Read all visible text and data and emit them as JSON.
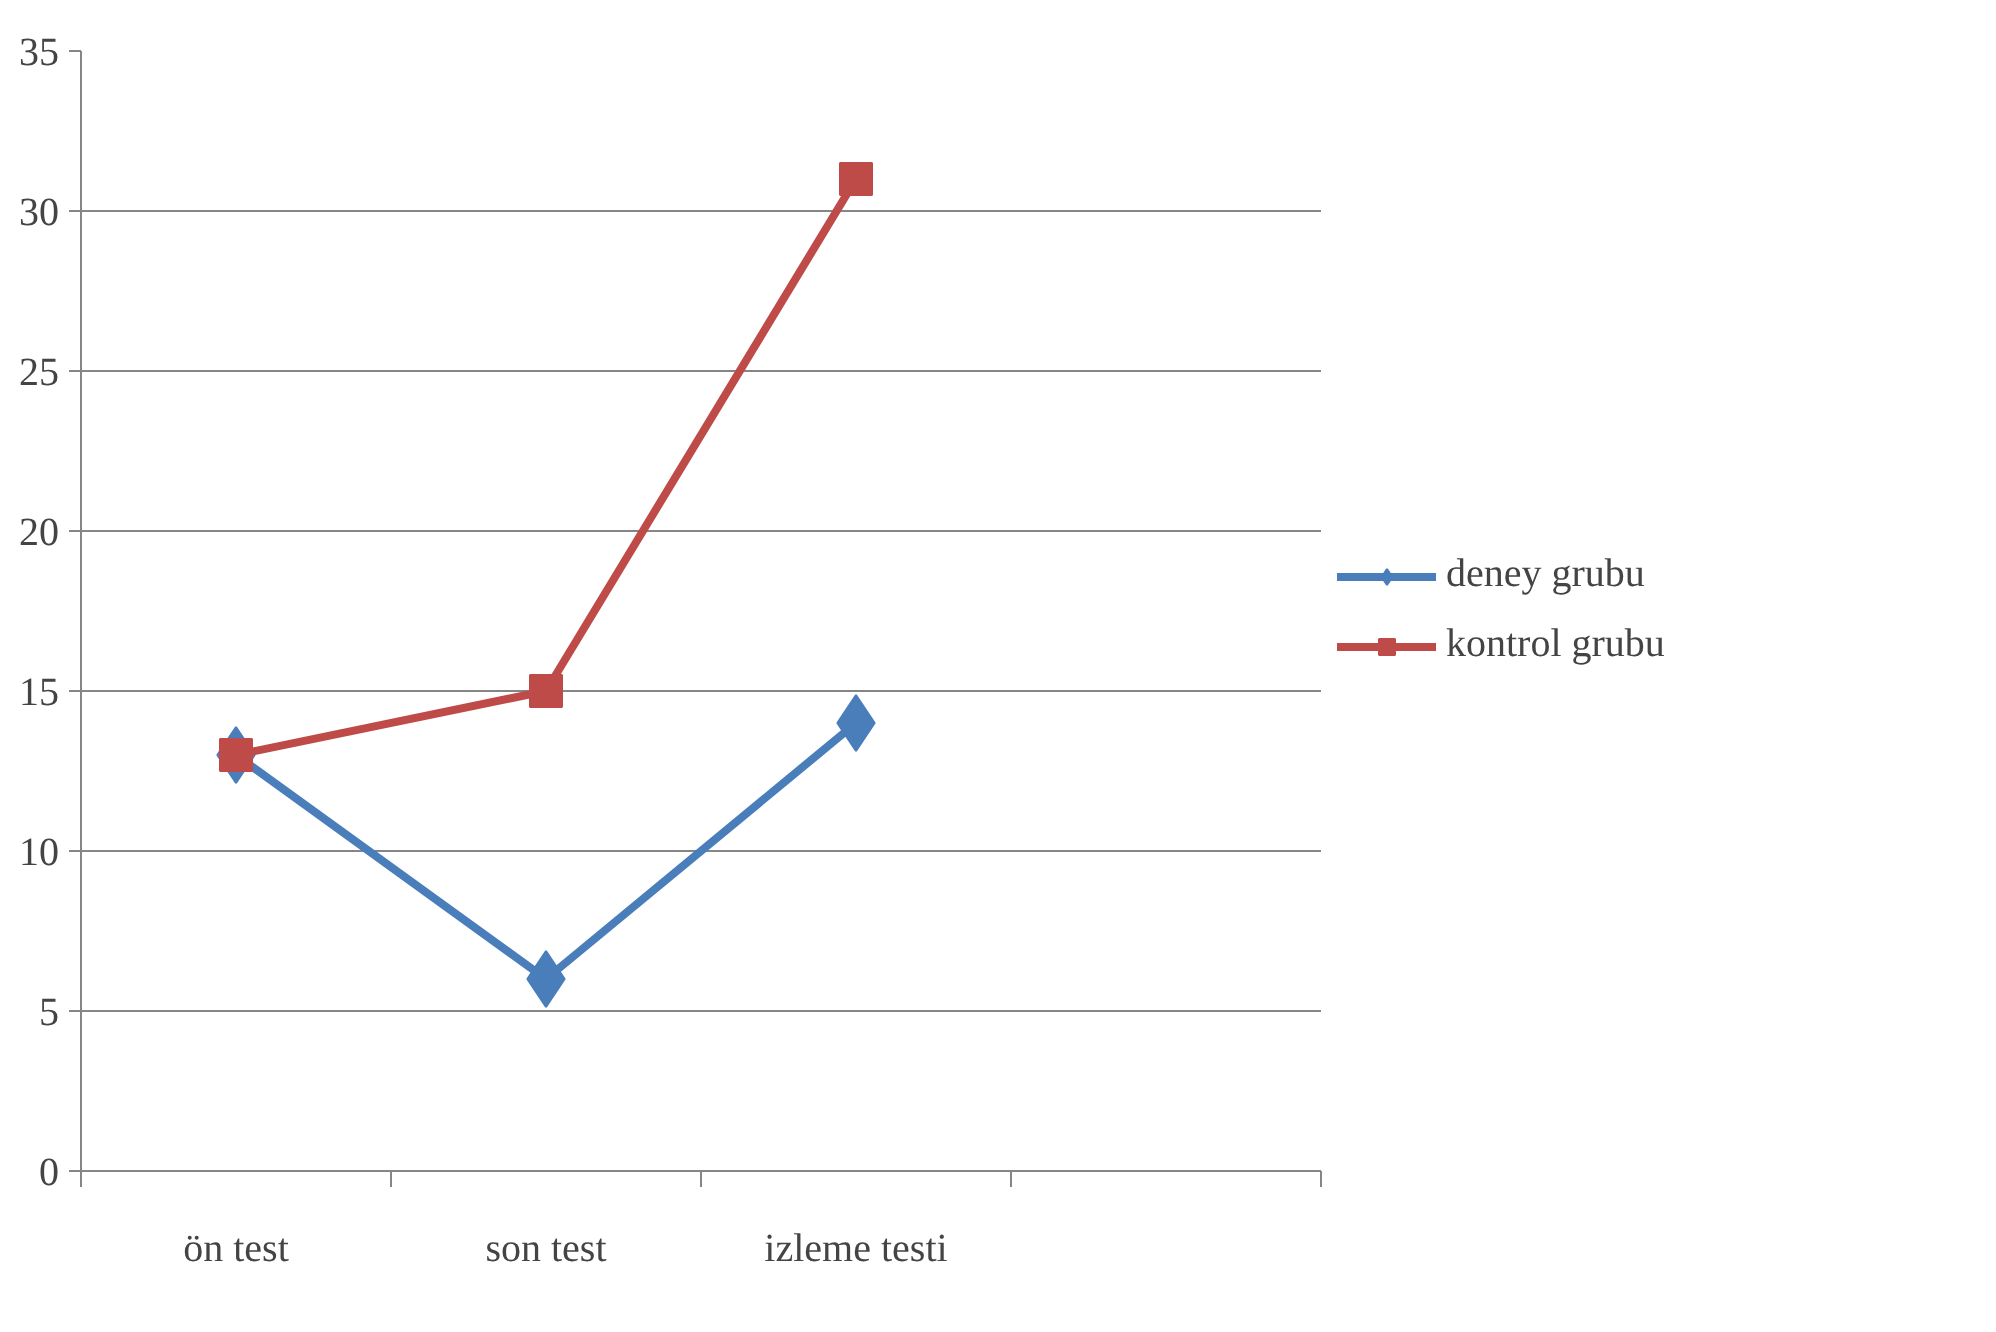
{
  "chart_data": {
    "type": "line",
    "categories": [
      "ön test",
      "son test",
      "izleme testi",
      null
    ],
    "series": [
      {
        "name": "deney grubu",
        "color": "#4a7ebb",
        "marker": "diamond",
        "values": [
          13,
          6,
          14,
          null
        ]
      },
      {
        "name": "kontrol grubu",
        "color": "#be4b48",
        "marker": "square",
        "values": [
          13,
          15,
          31,
          null
        ]
      }
    ],
    "ylim": [
      0,
      35
    ],
    "yticks": [
      0,
      5,
      10,
      15,
      20,
      25,
      30,
      35
    ],
    "grid": "y",
    "legend": "right",
    "line_style": "solid"
  }
}
